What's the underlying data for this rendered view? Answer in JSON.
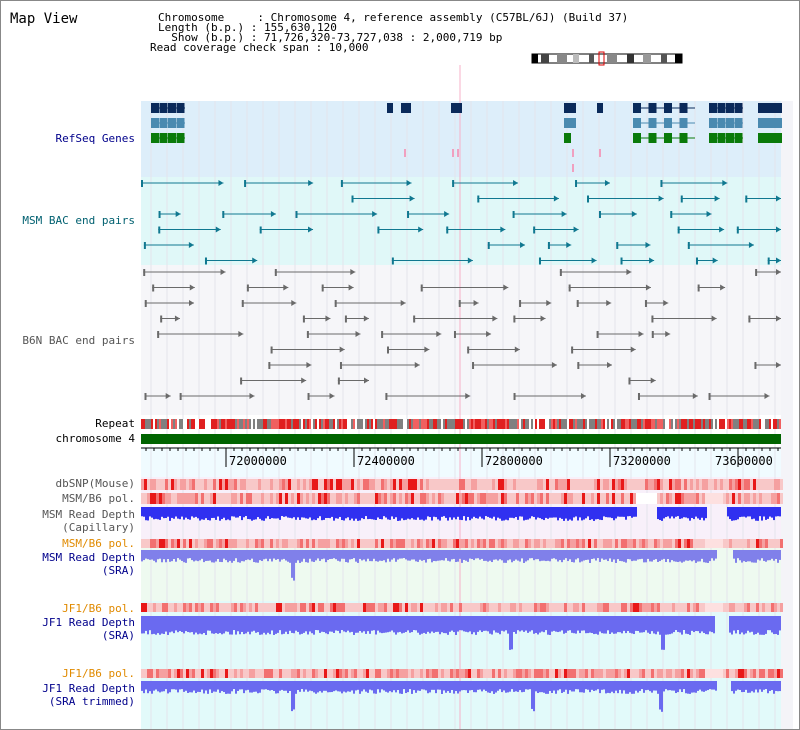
{
  "header": {
    "title": "Map View",
    "info_rows": [
      {
        "key": "Chromosome     ",
        "value": "Chromosome 4, reference assembly (C57BL/6J) (Build 37)"
      },
      {
        "key": "Length (b.p.) ",
        "value": "155,630,120"
      },
      {
        "key": "  Show (b.p.) ",
        "value": "71,726,320-73,727,038 : 2,000,719 bp"
      }
    ],
    "coverage_span": "Read coverage check span : 10,000"
  },
  "tracks": {
    "refseq": "RefSeq Genes",
    "msm_bac": "MSM BAC end pairs",
    "b6n_bac": "B6N BAC end pairs",
    "repeat": "Repeat",
    "chromosome": "chromosome 4",
    "dbsnp": "dbSNP(Mouse)",
    "msm_pol_1": "MSM/B6 pol.",
    "msm_depth_cap_1": "MSM Read Depth",
    "msm_depth_cap_2": "(Capillary)",
    "msm_pol_2": "MSM/B6 pol.",
    "msm_depth_sra_1": "MSM Read Depth",
    "msm_depth_sra_2": "(SRA)",
    "jf1_pol_1": "JF1/B6 pol.",
    "jf1_depth_sra_1": "JF1 Read Depth",
    "jf1_depth_sra_2": "(SRA)",
    "jf1_pol_2": "JF1/B6 pol.",
    "jf1_depth_trim_1": "JF1 Read Depth",
    "jf1_depth_trim_2": "(SRA trimmed)"
  },
  "axis": {
    "ticks": [
      "72000000",
      "72400000",
      "72800000",
      "73200000",
      "73600000"
    ]
  },
  "colors": {
    "label_navy": "#00008b",
    "label_teal": "#006070",
    "label_gray": "#555555",
    "label_orange": "#e08a00",
    "refseq_bg": "#ddeefa",
    "msm_bg": "#e0f8f8",
    "chrom_green": "#006400",
    "depth_blue": "#2222ee"
  }
}
